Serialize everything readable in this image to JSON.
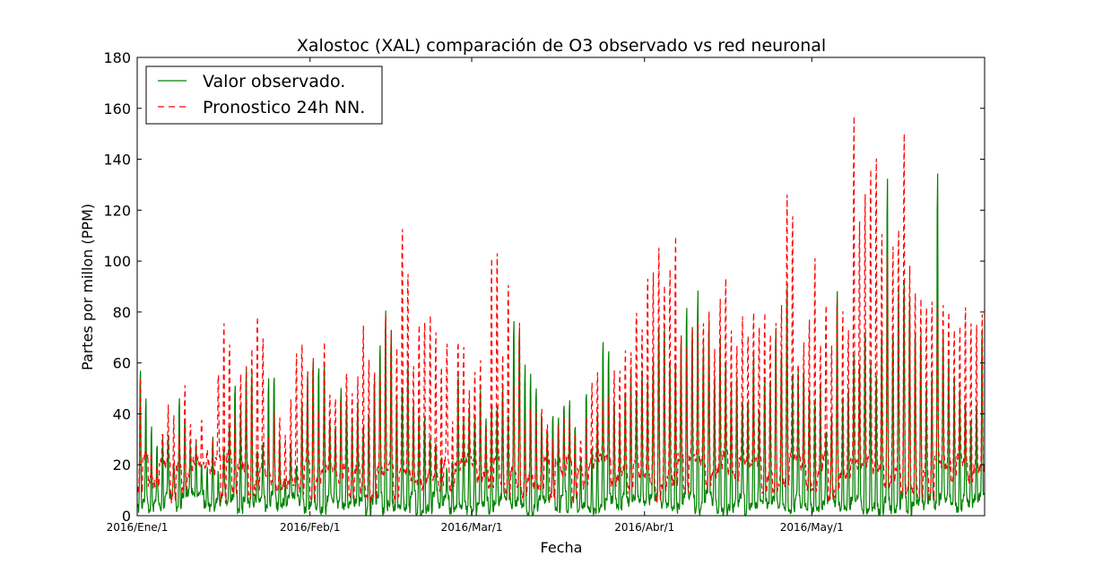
{
  "chart_data": {
    "type": "line",
    "title": "Xalostoc (XAL) comparación de O3 observado vs red neuronal",
    "xlabel": "Fecha",
    "ylabel": "Partes por millon (PPM)",
    "ylim": [
      0,
      180
    ],
    "y_ticks": [
      0,
      20,
      40,
      60,
      80,
      100,
      120,
      140,
      160,
      180
    ],
    "x_ticks": [
      {
        "label": "2016/Ene/1",
        "day": 0
      },
      {
        "label": "2016/Feb/1",
        "day": 31
      },
      {
        "label": "2016/Mar/1",
        "day": 60
      },
      {
        "label": "2016/Abr/1",
        "day": 91
      },
      {
        "label": "2016/May/1",
        "day": 121
      }
    ],
    "xlim_days": [
      0,
      152
    ],
    "legend": {
      "position": "top-left"
    },
    "grid": false,
    "series": [
      {
        "name": "Valor observado.",
        "color": "#008000",
        "style": "solid",
        "daily_peaks": [
          64,
          50,
          37,
          29,
          33,
          32,
          22,
          51,
          40,
          30,
          33,
          22,
          20,
          35,
          18,
          28,
          40,
          55,
          45,
          62,
          62,
          28,
          30,
          60,
          60,
          32,
          14,
          28,
          21,
          48,
          60,
          66,
          65,
          67,
          40,
          38,
          55,
          48,
          40,
          46,
          38,
          45,
          58,
          72,
          86,
          78,
          50,
          55,
          65,
          48,
          45,
          42,
          35,
          30,
          25,
          20,
          24,
          58,
          42,
          45,
          40,
          55,
          40,
          48,
          45,
          55,
          42,
          85,
          82,
          64,
          60,
          55,
          44,
          38,
          42,
          44,
          47,
          48,
          39,
          24,
          53,
          27,
          44,
          75,
          72,
          50,
          42,
          54,
          62,
          55,
          60,
          58,
          65,
          80,
          80,
          65,
          65,
          78,
          90,
          80,
          95,
          72,
          82,
          60,
          75,
          65,
          55,
          60,
          48,
          50,
          70,
          45,
          60,
          58,
          80,
          72,
          99,
          60,
          60,
          62,
          55,
          48,
          55,
          35,
          42,
          98,
          50,
          55,
          68,
          65,
          80,
          65,
          58,
          80,
          145,
          80,
          98,
          100,
          95,
          80,
          78,
          55,
          60,
          148,
          80,
          65,
          60,
          55,
          50,
          42,
          45,
          80
        ]
      },
      {
        "name": "Pronostico 24h NN.",
        "color": "#ff0000",
        "style": "dashed",
        "daily_peaks": [
          60,
          28,
          25,
          20,
          33,
          44,
          42,
          34,
          55,
          37,
          30,
          38,
          28,
          32,
          60,
          84,
          70,
          42,
          58,
          62,
          70,
          86,
          75,
          34,
          42,
          40,
          35,
          48,
          68,
          74,
          58,
          69,
          45,
          71,
          52,
          48,
          51,
          61,
          52,
          57,
          81,
          68,
          62,
          60,
          84,
          78,
          70,
          123,
          104,
          64,
          80,
          84,
          83,
          76,
          62,
          70,
          38,
          75,
          69,
          52,
          60,
          64,
          38,
          108,
          112,
          66,
          100,
          54,
          80,
          40,
          46,
          44,
          45,
          38,
          34,
          37,
          42,
          38,
          36,
          30,
          42,
          56,
          58,
          46,
          50,
          60,
          62,
          70,
          68,
          87,
          80,
          102,
          104,
          114,
          100,
          104,
          118,
          74,
          70,
          78,
          82,
          80,
          86,
          70,
          90,
          98,
          76,
          72,
          82,
          75,
          84,
          78,
          87,
          76,
          80,
          88,
          138,
          127,
          64,
          72,
          82,
          108,
          70,
          88,
          74,
          94,
          86,
          80,
          170,
          125,
          135,
          148,
          154,
          120,
          110,
          114,
          122,
          164,
          106,
          96,
          92,
          90,
          90,
          92,
          88,
          85,
          80,
          78,
          86,
          82,
          80,
          84
        ]
      }
    ]
  }
}
